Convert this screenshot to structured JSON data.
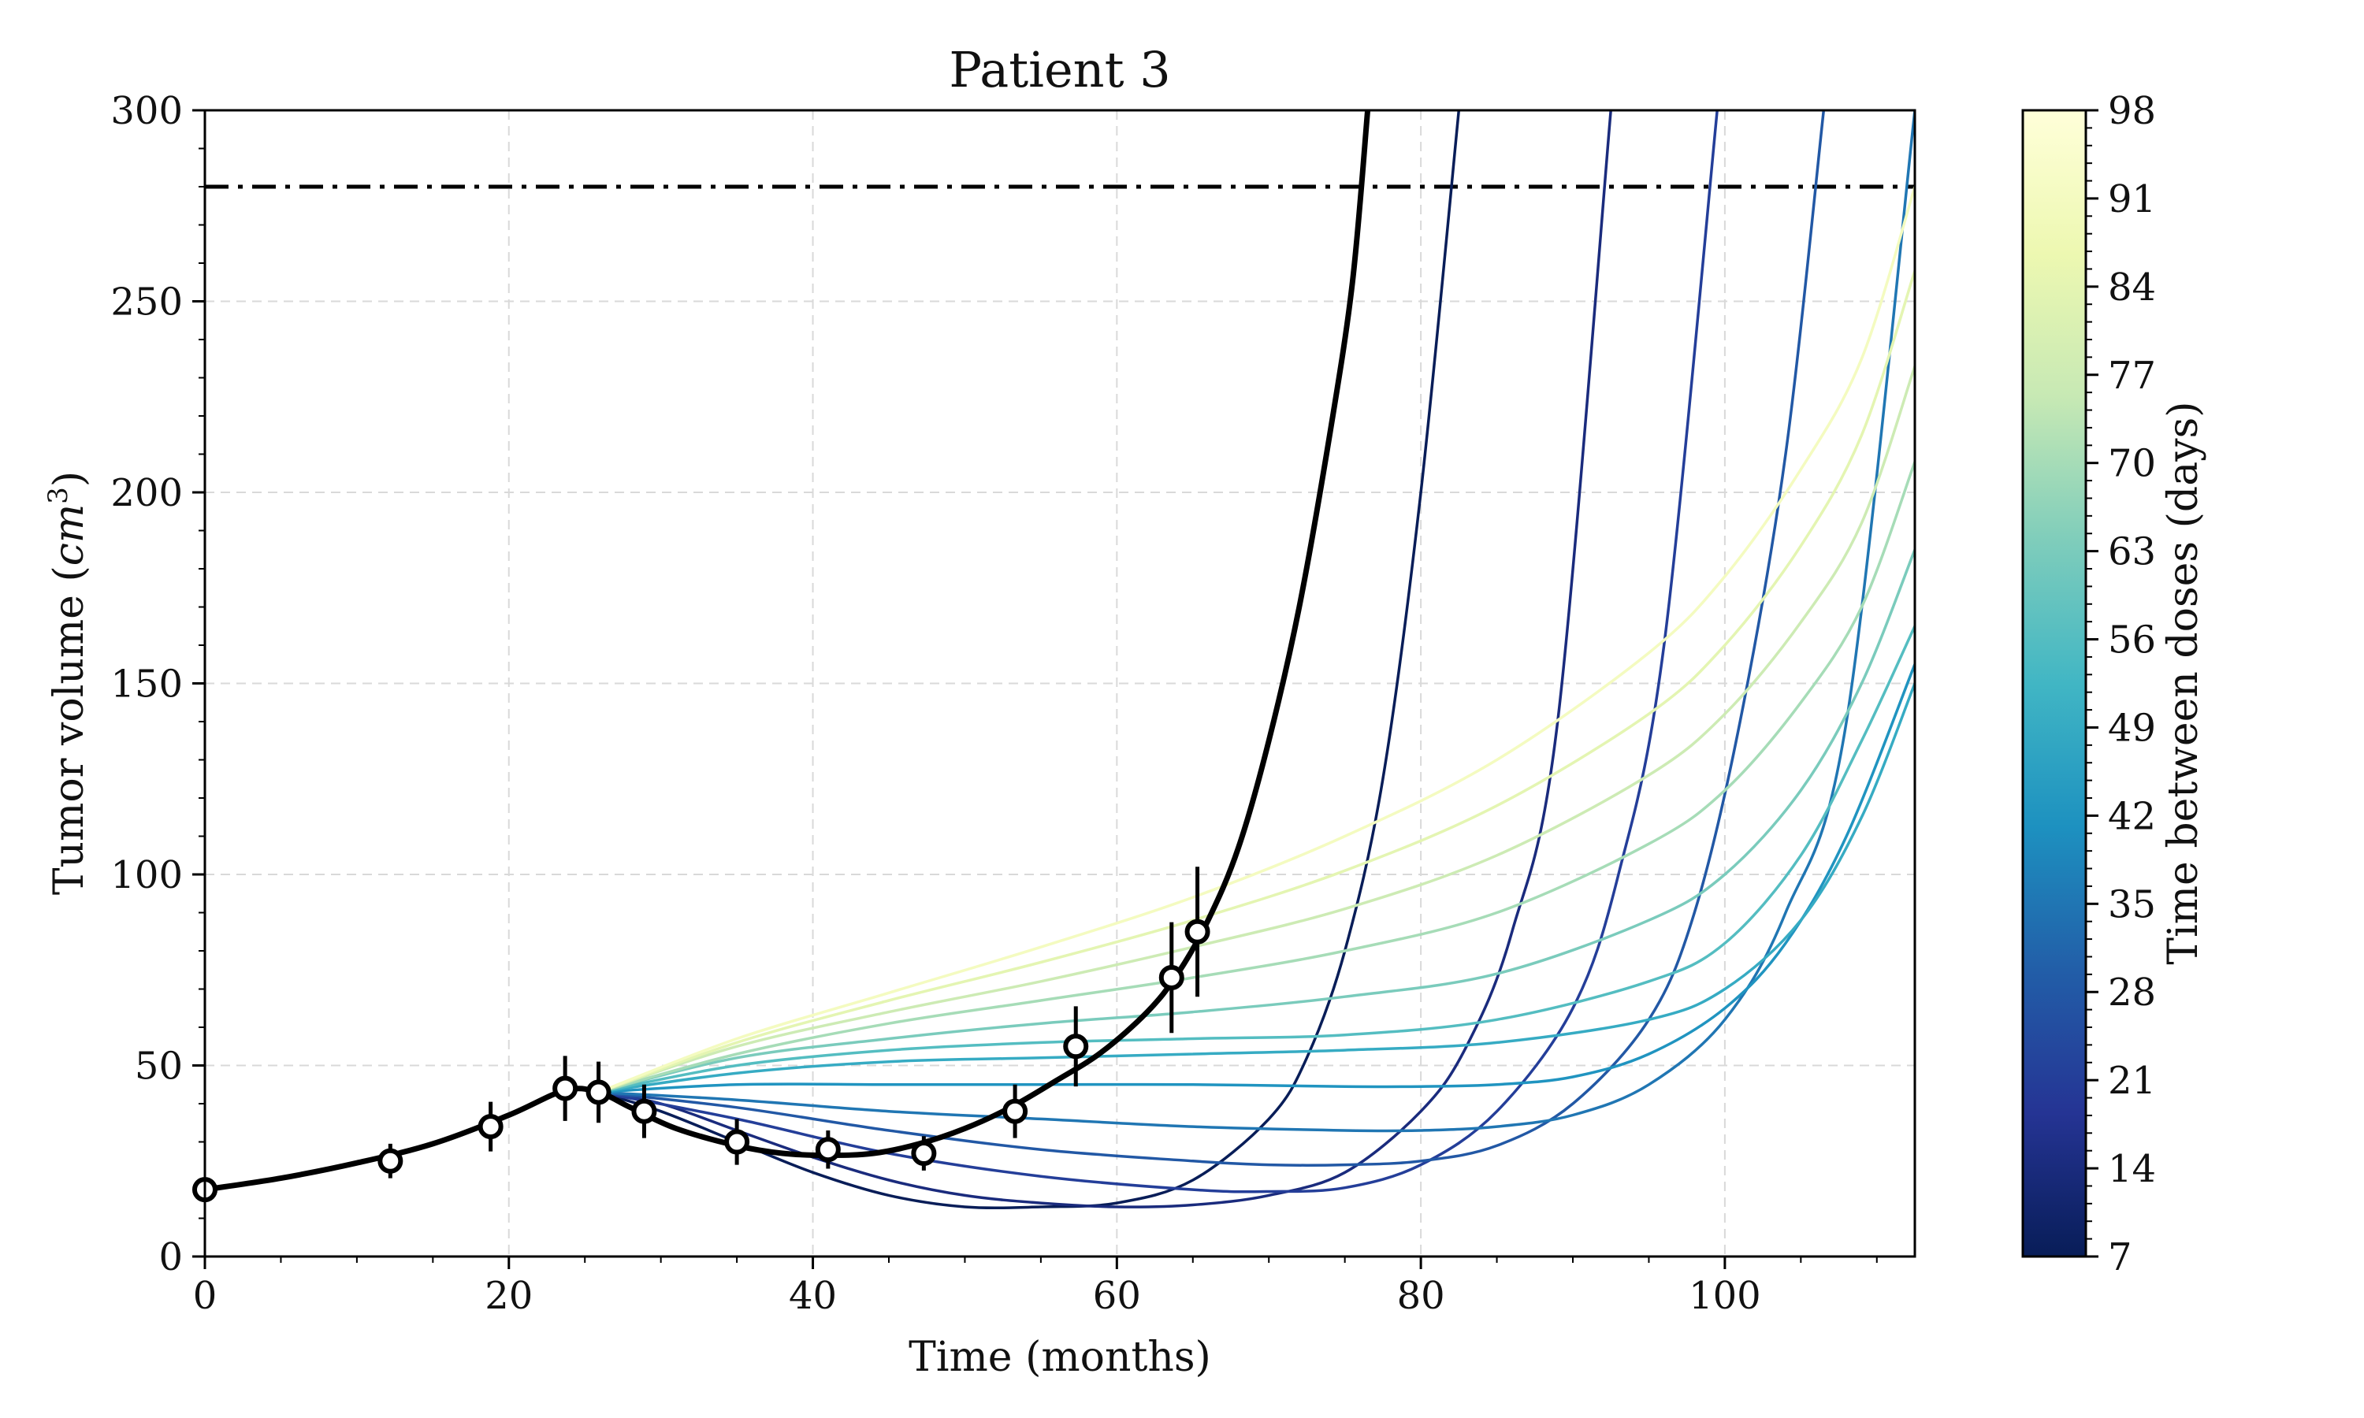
{
  "chart_data": {
    "type": "line",
    "title": "Patient 3",
    "xlabel": "Time (months)",
    "ylabel_main": "Tumor volume (",
    "ylabel_unit": "cm",
    "ylabel_exp": "3",
    "ylabel_close": ")",
    "xlim": [
      0,
      112.5
    ],
    "ylim": [
      0,
      300
    ],
    "x_ticks": [
      0,
      20,
      40,
      60,
      80,
      100
    ],
    "y_ticks": [
      0,
      50,
      100,
      150,
      200,
      250,
      300
    ],
    "grid": true,
    "threshold": {
      "y": 280,
      "style": "dash-dot",
      "color": "#000000"
    },
    "observations": {
      "x": [
        0,
        12.2,
        18.8,
        23.7,
        25.9,
        28.9,
        35,
        41,
        47.3,
        53.3,
        57.3,
        63.6,
        65.3
      ],
      "y": [
        17.5,
        25,
        34,
        44,
        43,
        38,
        30,
        28,
        27,
        38,
        55,
        73,
        85
      ],
      "err": [
        0,
        4.5,
        6.5,
        8.5,
        8,
        7,
        6,
        5,
        4.5,
        7,
        10.5,
        14.5,
        17
      ]
    },
    "fit_curve": {
      "color": "#000000",
      "x": [
        0,
        5,
        10,
        15,
        20,
        23.7,
        25.9,
        28,
        31,
        35,
        38,
        41,
        44,
        47,
        50,
        53,
        56,
        59,
        62,
        64,
        66,
        68,
        70,
        72,
        74,
        75.5,
        76.5
      ],
      "y": [
        17.5,
        20.5,
        24.5,
        29.5,
        37,
        43.5,
        43,
        39,
        33.5,
        29,
        27,
        26.5,
        27,
        29.5,
        33.5,
        39,
        46,
        53.5,
        64,
        74,
        88,
        107,
        135,
        170,
        215,
        255,
        300
      ]
    },
    "colorbar": {
      "label": "Time between doses (days)",
      "ticks": [
        7,
        14,
        21,
        28,
        35,
        42,
        49,
        56,
        63,
        70,
        77,
        84,
        91,
        98
      ],
      "range": [
        7,
        98
      ],
      "colormap": "YlGnBu_r",
      "colors": [
        "#081d58",
        "#253494",
        "#225ea8",
        "#1d91c0",
        "#41b6c4",
        "#7fcdbb",
        "#c7e9b4",
        "#edf8b1",
        "#ffffd9"
      ]
    },
    "series": [
      {
        "dose_interval": 7,
        "x": [
          25.9,
          30,
          35,
          40,
          45,
          50,
          55,
          60,
          65,
          70,
          72.5,
          75,
          77.5,
          80,
          82.5
        ],
        "y": [
          43,
          38,
          30,
          22,
          16,
          13,
          13,
          14,
          20,
          36,
          52,
          80,
          125,
          200,
          300
        ]
      },
      {
        "dose_interval": 14,
        "x": [
          25.9,
          30,
          35,
          40,
          45,
          50,
          55,
          60,
          65,
          70,
          75,
          80,
          83,
          86,
          89,
          92.5
        ],
        "y": [
          43,
          40,
          33,
          26,
          20,
          16,
          14,
          13,
          13.5,
          16,
          22,
          38,
          55,
          85,
          140,
          300
        ]
      },
      {
        "dose_interval": 21,
        "x": [
          25.9,
          35,
          45,
          55,
          65,
          70,
          75,
          80,
          85,
          90,
          93,
          96,
          99.5
        ],
        "y": [
          43,
          36,
          27,
          21,
          17.5,
          17,
          18,
          24,
          38,
          65,
          100,
          160,
          300
        ]
      },
      {
        "dose_interval": 28,
        "x": [
          25.9,
          35,
          45,
          55,
          65,
          70,
          75,
          80,
          85,
          90,
          95,
          98,
          101,
          104,
          106.5
        ],
        "y": [
          43,
          39,
          33,
          28,
          25,
          24,
          24,
          25,
          29,
          40,
          62,
          90,
          140,
          210,
          300
        ]
      },
      {
        "dose_interval": 35,
        "x": [
          25.9,
          35,
          45,
          55,
          65,
          75,
          80,
          85,
          90,
          95,
          100,
          104,
          108,
          112.5
        ],
        "y": [
          43,
          41,
          38,
          36,
          34,
          33,
          33,
          34,
          37,
          45,
          62,
          90,
          140,
          300
        ]
      },
      {
        "dose_interval": 42,
        "x": [
          25.9,
          35,
          45,
          55,
          65,
          75,
          80,
          85,
          90,
          95,
          100,
          104,
          108,
          112.5
        ],
        "y": [
          43,
          45,
          45,
          45,
          45,
          44.5,
          44.5,
          45,
          47,
          53,
          65,
          82,
          110,
          155
        ]
      },
      {
        "dose_interval": 49,
        "x": [
          25.9,
          35,
          45,
          55,
          65,
          75,
          85,
          95,
          100,
          105,
          109,
          112.5
        ],
        "y": [
          43,
          48,
          51,
          52,
          53,
          54,
          56,
          62,
          70,
          88,
          115,
          150
        ]
      },
      {
        "dose_interval": 56,
        "x": [
          25.9,
          35,
          45,
          55,
          65,
          75,
          85,
          95,
          100,
          105,
          109,
          112.5
        ],
        "y": [
          43,
          50,
          54,
          56,
          57,
          58,
          62,
          72,
          82,
          105,
          135,
          165
        ]
      },
      {
        "dose_interval": 63,
        "x": [
          25.9,
          35,
          45,
          55,
          65,
          75,
          85,
          95,
          100,
          105,
          109,
          112.5
        ],
        "y": [
          43,
          52,
          57,
          61,
          64,
          68,
          74,
          88,
          100,
          122,
          150,
          185
        ]
      },
      {
        "dose_interval": 70,
        "x": [
          25.9,
          35,
          45,
          55,
          65,
          75,
          85,
          95,
          100,
          105,
          109,
          112.5
        ],
        "y": [
          43,
          53,
          61,
          67,
          73,
          80,
          90,
          108,
          122,
          145,
          170,
          208
        ]
      },
      {
        "dose_interval": 77,
        "x": [
          25.9,
          35,
          45,
          55,
          65,
          75,
          85,
          95,
          100,
          105,
          109,
          112.5
        ],
        "y": [
          43,
          55,
          64,
          72,
          81,
          91,
          105,
          126,
          142,
          166,
          192,
          233
        ]
      },
      {
        "dose_interval": 84,
        "x": [
          25.9,
          35,
          45,
          55,
          65,
          75,
          85,
          95,
          100,
          105,
          109,
          112.5
        ],
        "y": [
          43,
          56,
          67,
          77,
          88,
          101,
          118,
          142,
          160,
          186,
          215,
          258
        ]
      },
      {
        "dose_interval": 91,
        "x": [
          25.9,
          35,
          45,
          55,
          65,
          75,
          85,
          95,
          100,
          105,
          109,
          112.5
        ],
        "y": [
          43,
          57,
          69,
          81,
          94,
          110,
          130,
          158,
          178,
          206,
          235,
          280
        ]
      }
    ]
  }
}
